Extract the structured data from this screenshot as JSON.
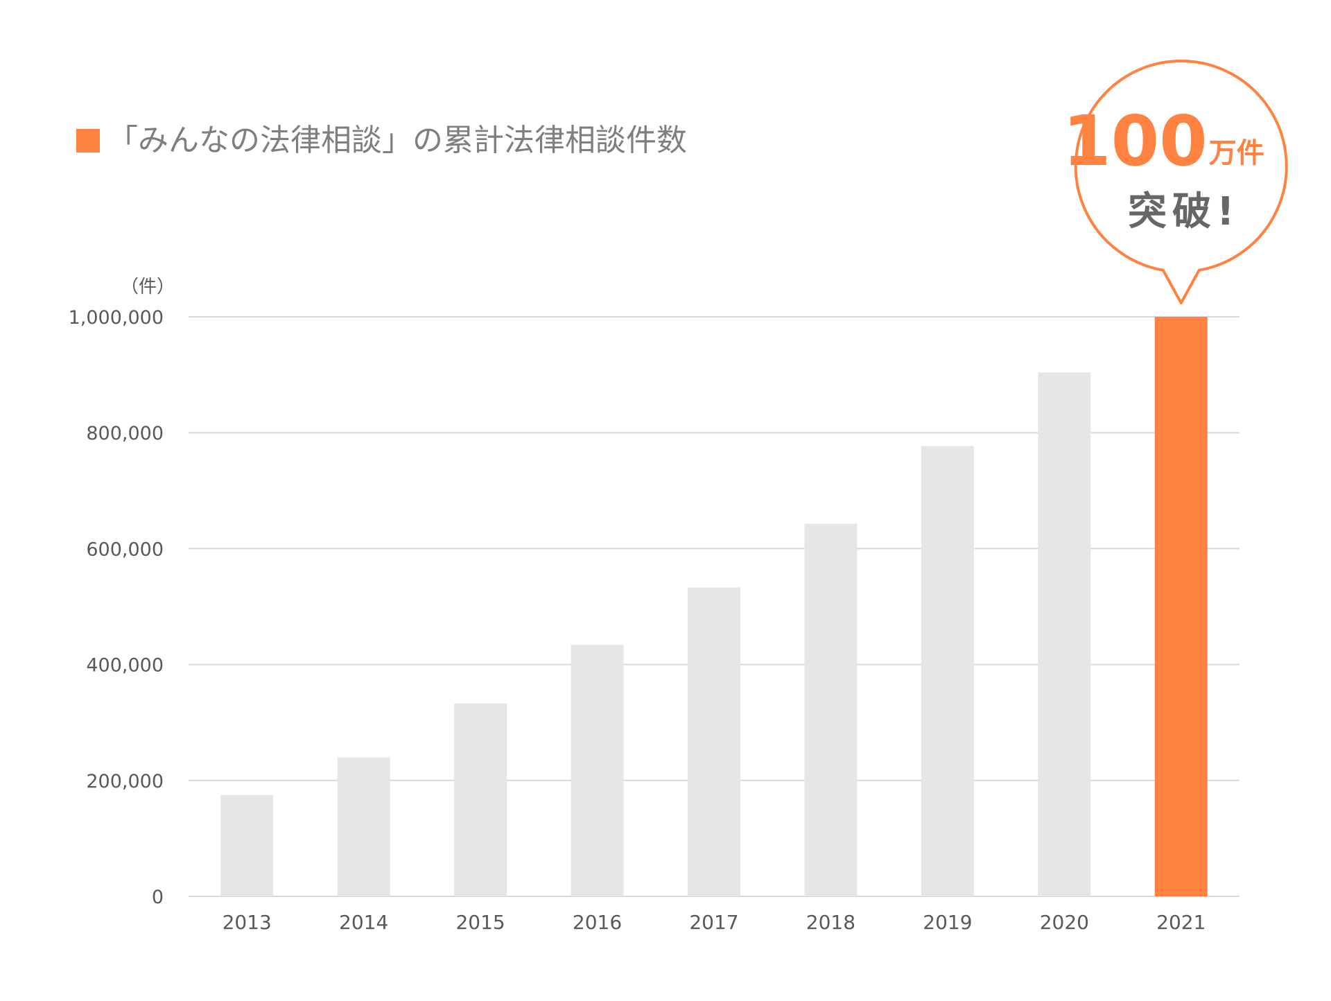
{
  "chart_data": {
    "type": "bar",
    "title": "「みんなの法律相談」の累計法律相談件数",
    "legend_label": "「みんなの法律相談」の累計法律相談件数",
    "unit_label": "（件）",
    "categories": [
      "2013",
      "2014",
      "2015",
      "2016",
      "2017",
      "2018",
      "2019",
      "2020",
      "2021"
    ],
    "values": [
      175000,
      240000,
      333000,
      434000,
      533000,
      643000,
      777000,
      904000,
      1000000
    ],
    "highlight_index": 8,
    "ylim": [
      0,
      1000000
    ],
    "yticks": [
      {
        "value": 0,
        "label": "0"
      },
      {
        "value": 200000,
        "label": "200,000"
      },
      {
        "value": 400000,
        "label": "400,000"
      },
      {
        "value": 600000,
        "label": "600,000"
      },
      {
        "value": 800000,
        "label": "800,000"
      },
      {
        "value": 1000000,
        "label": "1,000,000"
      }
    ],
    "grid": true,
    "legend_position": "top-left",
    "colors": {
      "bar": "#e6e6e6",
      "highlight": "#ff8241",
      "grid": "#d9d9d9",
      "text": "#595959",
      "title_text": "#7f7f7f"
    },
    "callout": {
      "number": "100",
      "unit": "万件",
      "line2": "突破!"
    }
  }
}
